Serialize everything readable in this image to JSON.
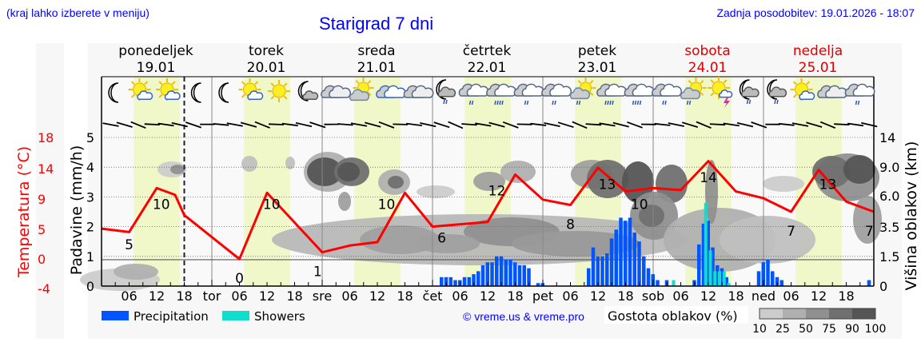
{
  "header": {
    "left_note": "(kraj lahko izberete v meniju)",
    "title": "Starigrad 7 dni",
    "updated": "Zadnja posodobitev: 19.01.2026 - 18:07"
  },
  "days": [
    {
      "name": "ponedeljek",
      "date": "19.01",
      "weekend": false
    },
    {
      "name": "torek",
      "date": "20.01",
      "weekend": false
    },
    {
      "name": "sreda",
      "date": "21.01",
      "weekend": false
    },
    {
      "name": "četrtek",
      "date": "22.01",
      "weekend": false
    },
    {
      "name": "petek",
      "date": "23.01",
      "weekend": false
    },
    {
      "name": "sobota",
      "date": "24.01",
      "weekend": true
    },
    {
      "name": "nedelja",
      "date": "25.01",
      "weekend": true
    }
  ],
  "icons": [
    "moon",
    "sun-cloud",
    "sun-cloud",
    "moon",
    "moon",
    "sun-cloud",
    "sun",
    "moon-cloud",
    "clouds",
    "sun-cloud-grey",
    "clouds-blue",
    "clouds",
    "moon-cloud-rain",
    "clouds-rain",
    "clouds-rain-heavy",
    "clouds-rain",
    "clouds-rain",
    "sun-cloud-rain",
    "clouds-rain-heavy",
    "clouds-rain-heavy",
    "clouds-rain",
    "sun-cloud-rain",
    "sun-thunder",
    "moon-cloud-rain",
    "moon-cloud-rain",
    "sun-cloud",
    "clouds",
    "clouds-rain"
  ],
  "axes": {
    "left_temp_label": "Temperatura (°C)",
    "left_temp_ticks": [
      "18",
      "14",
      "9",
      "5",
      "0",
      "-4"
    ],
    "left_precip_label": "Padavine (mm/h)",
    "left_precip_ticks": [
      "5",
      "4",
      "3",
      "2",
      "1",
      "0"
    ],
    "right_label": "Višina oblakov (km)",
    "right_ticks": [
      "14",
      "9.0",
      "6.0",
      "3.5",
      "1.5",
      "0"
    ],
    "x_ticks": [
      "06",
      "12",
      "18",
      "tor",
      "06",
      "12",
      "18",
      "sre",
      "06",
      "12",
      "18",
      "čet",
      "06",
      "12",
      "18",
      "pet",
      "06",
      "12",
      "18",
      "sob",
      "06",
      "12",
      "18",
      "ned",
      "06",
      "12",
      "18"
    ]
  },
  "legend": {
    "precipitation": "Precipitation",
    "showers": "Showers",
    "copyright": "© vreme.us & vreme.pro",
    "cloud_density_label": "Gostota oblakov (%)",
    "cloud_density_steps": [
      "10",
      "25",
      "50",
      "75",
      "90",
      "100"
    ]
  },
  "colors": {
    "precip": "#0055ff",
    "showers": "#11ddcc",
    "temp": "#ff0000",
    "daylight": "#f0f7c8",
    "weekend": "#dd0000",
    "link": "#0000ff",
    "cloud_scale": [
      "#cccccc",
      "#b0b0b0",
      "#909090",
      "#707070",
      "#555555"
    ]
  },
  "chart_data": {
    "type": "line",
    "title": "Starigrad 7 dni",
    "xlabel": "",
    "ylabel": "Padavine (mm/h)",
    "ylim": [
      0,
      5
    ],
    "temperature_series": {
      "name": "Temperatura (°C)",
      "ylim": [
        -4,
        18
      ],
      "points_hours": [
        0,
        6,
        12,
        16,
        18,
        30,
        36,
        48,
        54,
        60,
        66,
        72,
        84,
        90,
        96,
        102,
        108,
        114,
        120,
        126,
        132,
        138,
        144,
        150,
        156,
        162,
        168
      ],
      "values": [
        4.5,
        4.0,
        10.5,
        9.5,
        6.5,
        0.0,
        9.8,
        1.0,
        2.0,
        2.5,
        9.8,
        4.8,
        5.5,
        12.5,
        8.8,
        8.0,
        13.5,
        10.0,
        10.5,
        10.2,
        14.5,
        10.0,
        9.0,
        7.0,
        13.2,
        8.5,
        7.0
      ],
      "labels": [
        {
          "hour": 6,
          "value": "5"
        },
        {
          "hour": 13,
          "value": "10"
        },
        {
          "hour": 30,
          "value": "0"
        },
        {
          "hour": 37,
          "value": "10"
        },
        {
          "hour": 47,
          "value": "1"
        },
        {
          "hour": 62,
          "value": "10"
        },
        {
          "hour": 74,
          "value": "6"
        },
        {
          "hour": 86,
          "value": "12"
        },
        {
          "hour": 102,
          "value": "8"
        },
        {
          "hour": 110,
          "value": "13"
        },
        {
          "hour": 117,
          "value": "10"
        },
        {
          "hour": 132,
          "value": "14"
        },
        {
          "hour": 150,
          "value": "7"
        },
        {
          "hour": 158,
          "value": "13"
        },
        {
          "hour": 167,
          "value": "7"
        }
      ]
    },
    "precipitation_mm_h": [
      {
        "hour": 74,
        "value": 0.3
      },
      {
        "hour": 75,
        "value": 0.3
      },
      {
        "hour": 76,
        "value": 0.3
      },
      {
        "hour": 77,
        "value": 0.2
      },
      {
        "hour": 78,
        "value": 0.2
      },
      {
        "hour": 79,
        "value": 0.3
      },
      {
        "hour": 80,
        "value": 0.3
      },
      {
        "hour": 81,
        "value": 0.4
      },
      {
        "hour": 82,
        "value": 0.5
      },
      {
        "hour": 83,
        "value": 0.7
      },
      {
        "hour": 84,
        "value": 0.8
      },
      {
        "hour": 85,
        "value": 0.8
      },
      {
        "hour": 86,
        "value": 1.0
      },
      {
        "hour": 87,
        "value": 1.0
      },
      {
        "hour": 88,
        "value": 0.9
      },
      {
        "hour": 89,
        "value": 0.9
      },
      {
        "hour": 90,
        "value": 0.8
      },
      {
        "hour": 91,
        "value": 0.7
      },
      {
        "hour": 92,
        "value": 0.7
      },
      {
        "hour": 93,
        "value": 0.6
      },
      {
        "hour": 95,
        "value": 0.1
      },
      {
        "hour": 96,
        "value": 0.1
      },
      {
        "hour": 106,
        "value": 0.6
      },
      {
        "hour": 107,
        "value": 1.3
      },
      {
        "hour": 108,
        "value": 1.0
      },
      {
        "hour": 109,
        "value": 1.0
      },
      {
        "hour": 110,
        "value": 1.1
      },
      {
        "hour": 111,
        "value": 1.6
      },
      {
        "hour": 112,
        "value": 1.9
      },
      {
        "hour": 113,
        "value": 2.3
      },
      {
        "hour": 114,
        "value": 2.2
      },
      {
        "hour": 115,
        "value": 2.3
      },
      {
        "hour": 116,
        "value": 1.8
      },
      {
        "hour": 117,
        "value": 1.5
      },
      {
        "hour": 118,
        "value": 1.0
      },
      {
        "hour": 119,
        "value": 0.6
      },
      {
        "hour": 120,
        "value": 0.4
      },
      {
        "hour": 121,
        "value": 0.2
      },
      {
        "hour": 123,
        "value": 0.2
      },
      {
        "hour": 129,
        "value": 0.2
      },
      {
        "hour": 130,
        "value": 1.4
      },
      {
        "hour": 131,
        "value": 2.1
      },
      {
        "hour": 132,
        "value": 2.2
      },
      {
        "hour": 133,
        "value": 1.3
      },
      {
        "hour": 134,
        "value": 0.7
      },
      {
        "hour": 135,
        "value": 0.6
      },
      {
        "hour": 136,
        "value": 0.3
      },
      {
        "hour": 143,
        "value": 0.5
      },
      {
        "hour": 144,
        "value": 0.8
      },
      {
        "hour": 145,
        "value": 0.9
      },
      {
        "hour": 146,
        "value": 0.5
      },
      {
        "hour": 147,
        "value": 0.3
      },
      {
        "hour": 148,
        "value": 0.2
      },
      {
        "hour": 167,
        "value": 0.2
      }
    ],
    "showers_mm_h": [
      {
        "hour": 124,
        "value": 0.2
      },
      {
        "hour": 131,
        "value": 2.8
      },
      {
        "hour": 132,
        "value": 1.2
      },
      {
        "hour": 133,
        "value": 0.5
      },
      {
        "hour": 134,
        "value": 0.5
      },
      {
        "hour": 135,
        "value": 0.5
      },
      {
        "hour": 136,
        "value": 0.1
      }
    ],
    "cloud_density_legend": [
      10,
      25,
      50,
      75,
      90,
      100
    ],
    "daylight_hours": [
      [
        7,
        17
      ],
      [
        31,
        41
      ],
      [
        55,
        65
      ],
      [
        79,
        89
      ],
      [
        103,
        113
      ],
      [
        127,
        137
      ],
      [
        151,
        161
      ]
    ],
    "now_marker_hour": 18
  }
}
